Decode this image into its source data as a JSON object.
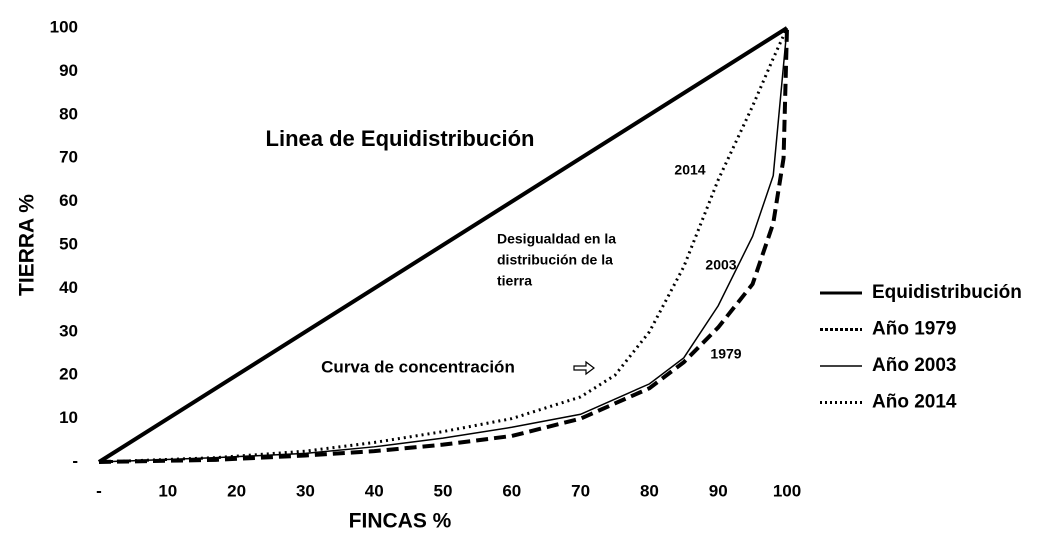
{
  "chart_data": {
    "type": "line",
    "xlabel": "FINCAS %",
    "ylabel": "TIERRA %",
    "xlim": [
      0,
      100
    ],
    "ylim": [
      0,
      100
    ],
    "xticks": [
      {
        "value": 0,
        "label": "-"
      },
      10,
      20,
      30,
      40,
      50,
      60,
      70,
      80,
      90,
      100
    ],
    "yticks": [
      {
        "value": 0,
        "label": "-"
      },
      10,
      20,
      30,
      40,
      50,
      60,
      70,
      80,
      90,
      100
    ],
    "grid": false,
    "legend": "right",
    "series": [
      {
        "name": "Equidistribución",
        "color": "#000000",
        "style": "solid",
        "width": 4,
        "x": [
          0,
          100
        ],
        "values": [
          0,
          100
        ]
      },
      {
        "name": "Año 1979",
        "color": "#000000",
        "style": "dashed",
        "width": 4,
        "x": [
          0,
          17,
          30,
          40,
          50,
          60,
          70,
          80,
          85,
          90,
          95,
          98,
          99.5,
          100
        ],
        "values": [
          0,
          0.5,
          1.5,
          2.5,
          4,
          6,
          10,
          17,
          23,
          31,
          41,
          55,
          70,
          100
        ]
      },
      {
        "name": "Año 2003",
        "color": "#000000",
        "style": "solid",
        "width": 1.5,
        "x": [
          0,
          17,
          30,
          40,
          50,
          60,
          70,
          80,
          85,
          90,
          95,
          98,
          100
        ],
        "values": [
          0,
          1,
          2,
          3.5,
          5.5,
          8,
          11,
          18,
          24,
          36,
          52,
          66,
          100
        ]
      },
      {
        "name": "Año 2014",
        "color": "#000000",
        "style": "dotted",
        "width": 3,
        "x": [
          0,
          17,
          30,
          40,
          50,
          60,
          70,
          75,
          80,
          85,
          90,
          95,
          98,
          100
        ],
        "values": [
          0,
          1,
          2.5,
          4.5,
          7,
          10,
          15,
          20,
          30,
          45,
          65,
          82,
          93,
          100
        ]
      }
    ],
    "annotations": [
      "Linea de Equidistribución",
      "2014",
      "2003",
      "1979",
      "Desigualdad en la",
      "distribución de la",
      "tierra",
      "Curva de concentración"
    ]
  }
}
